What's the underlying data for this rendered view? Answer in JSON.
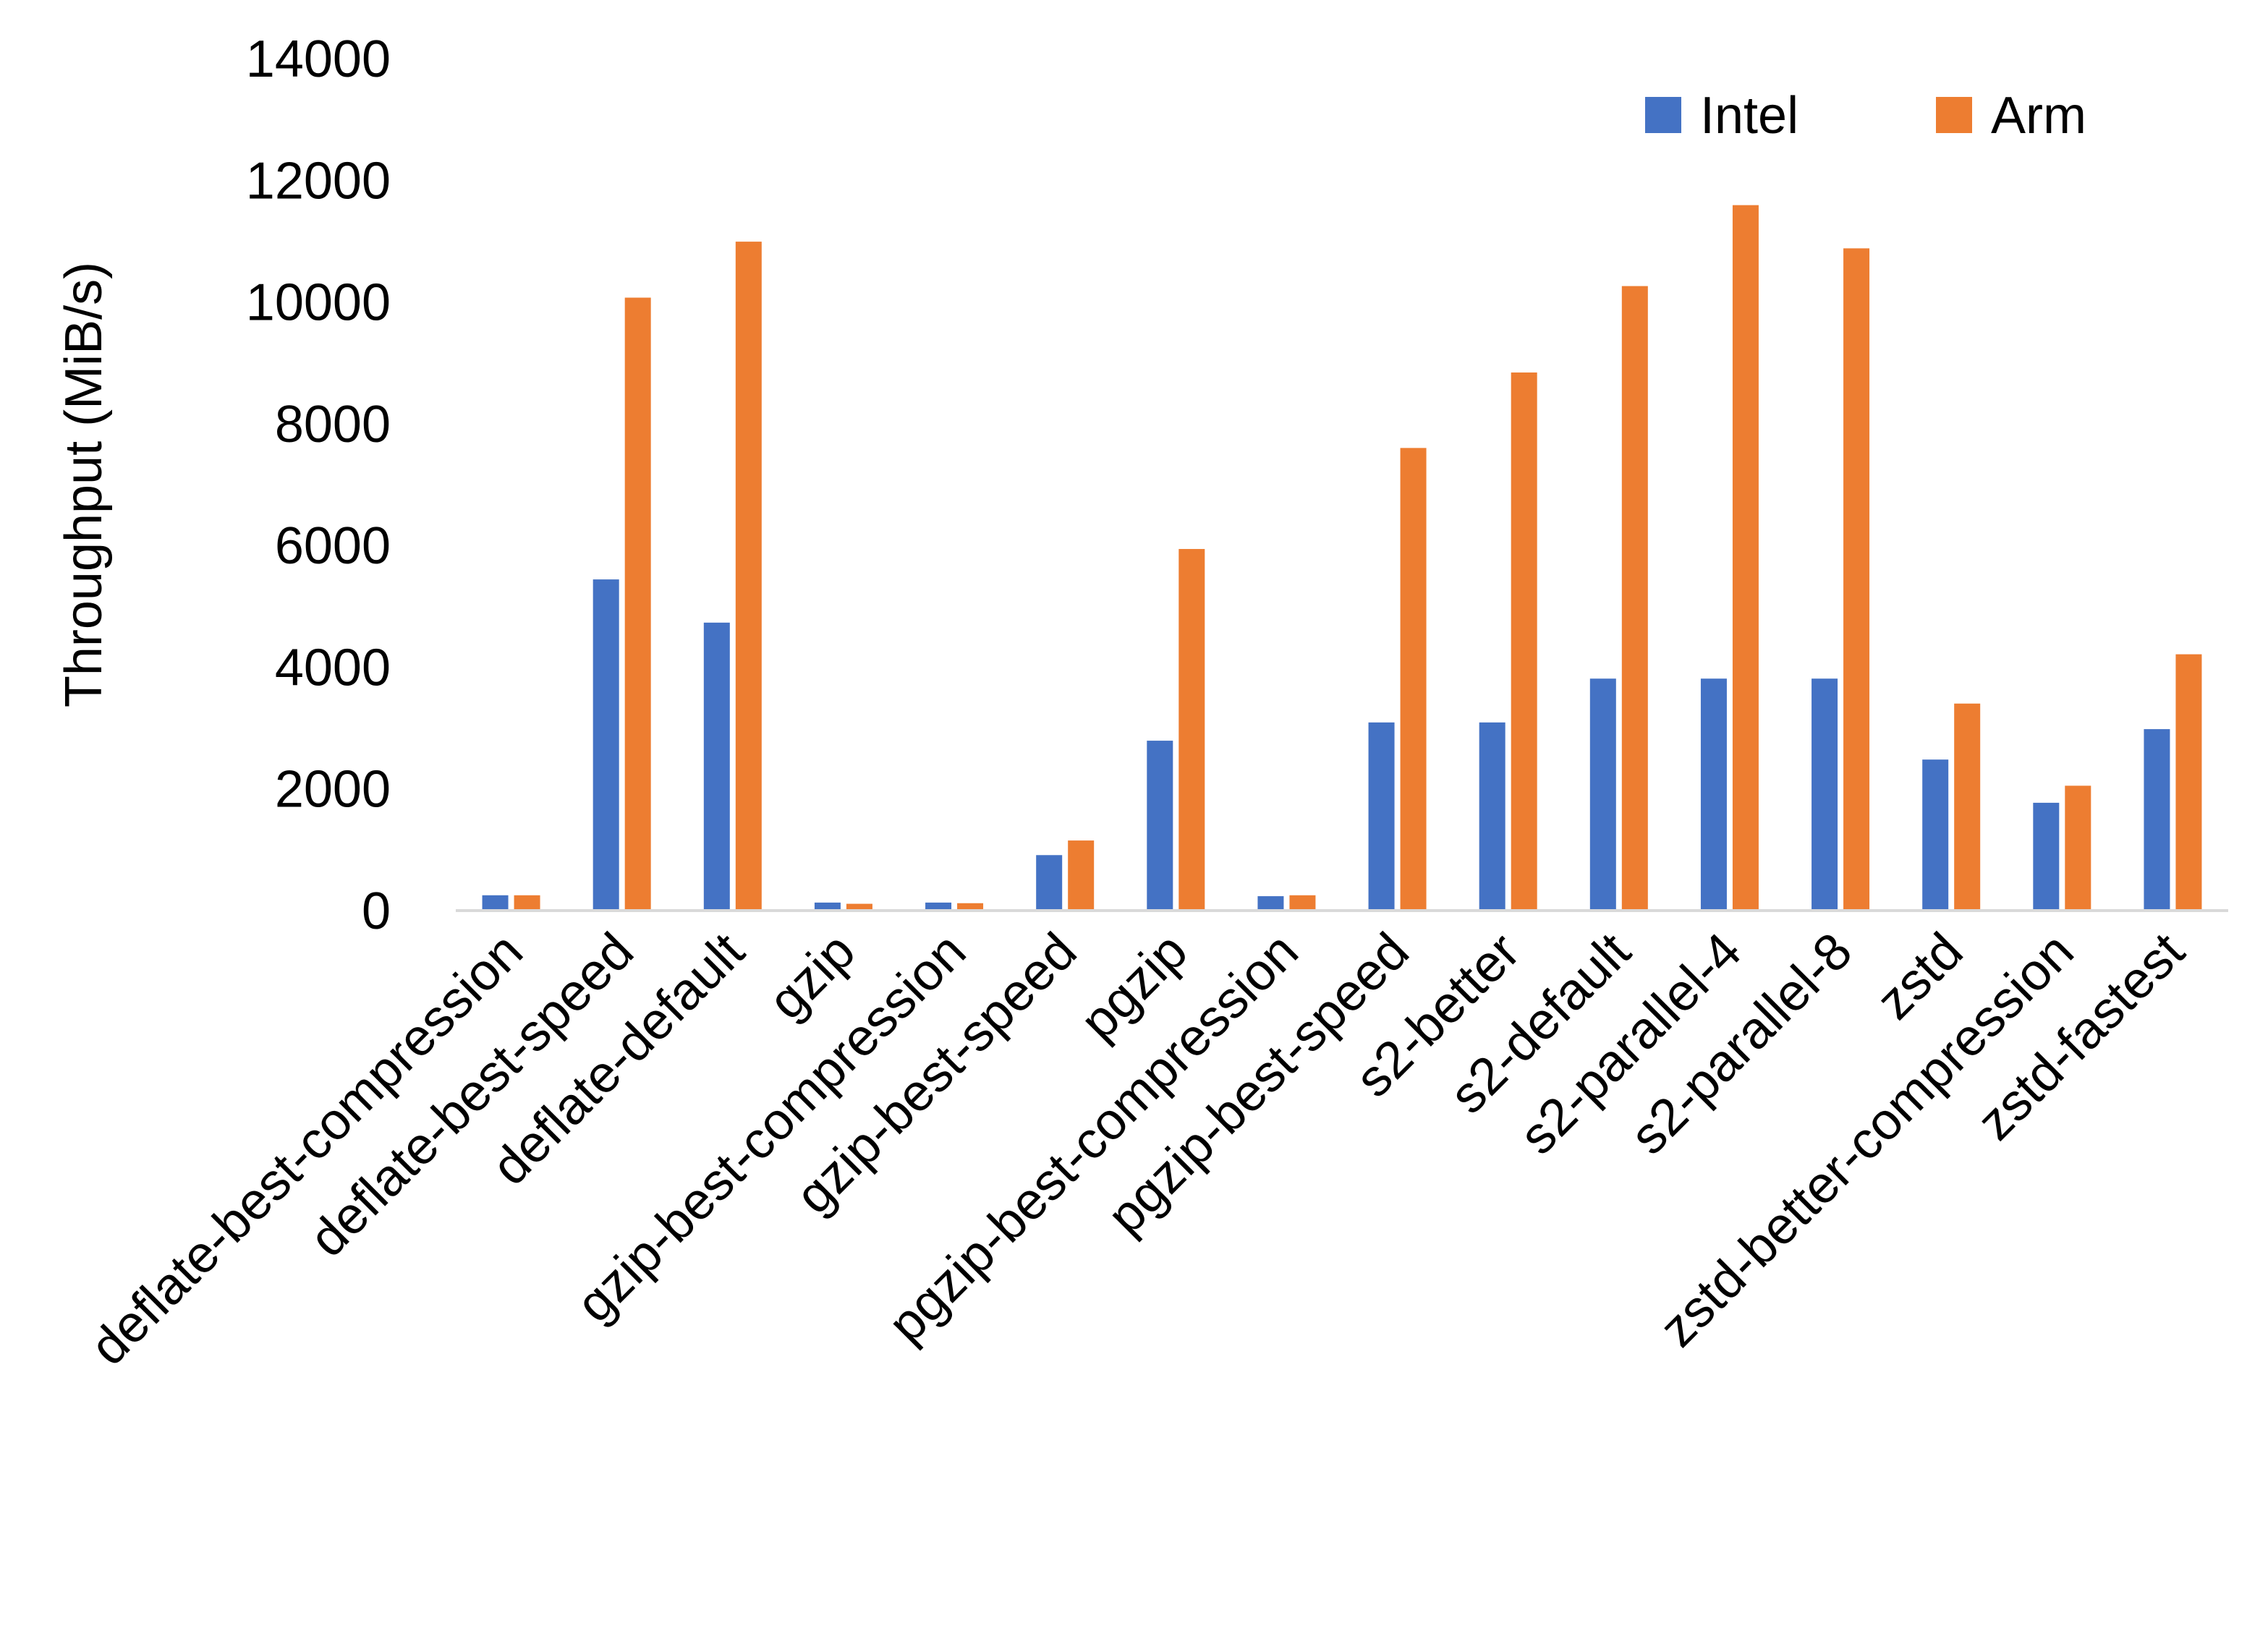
{
  "chart_data": {
    "type": "bar",
    "title": "",
    "xlabel": "",
    "ylabel": "Throughput (MiB/s)",
    "ylim": [
      0,
      14000
    ],
    "yticks": [
      0,
      2000,
      4000,
      6000,
      8000,
      10000,
      12000,
      14000
    ],
    "grid": false,
    "legend_position": "top-right",
    "categories": [
      "deflate-best-compression",
      "deflate-best-speed",
      "deflate-default",
      "gzip",
      "gzip-best-compression",
      "gzip-best-speed",
      "pgzip",
      "pgzip-best-compression",
      "pgzip-best-speed",
      "s2-better",
      "s2-default",
      "s2-parallel-4",
      "s2-parallel-8",
      "zstd",
      "zstd-better-compression",
      "zstd-fastest"
    ],
    "series": [
      {
        "name": "Intel",
        "color": "#4472C4",
        "values": [
          240,
          5430,
          4720,
          120,
          120,
          900,
          2780,
          225,
          3080,
          3080,
          3800,
          3800,
          3800,
          2470,
          1760,
          2970
        ]
      },
      {
        "name": "Arm",
        "color": "#ED7D31",
        "values": [
          240,
          10060,
          10980,
          100,
          110,
          1140,
          5930,
          240,
          7590,
          8830,
          10250,
          11580,
          10870,
          3390,
          2040,
          4200
        ]
      }
    ]
  }
}
